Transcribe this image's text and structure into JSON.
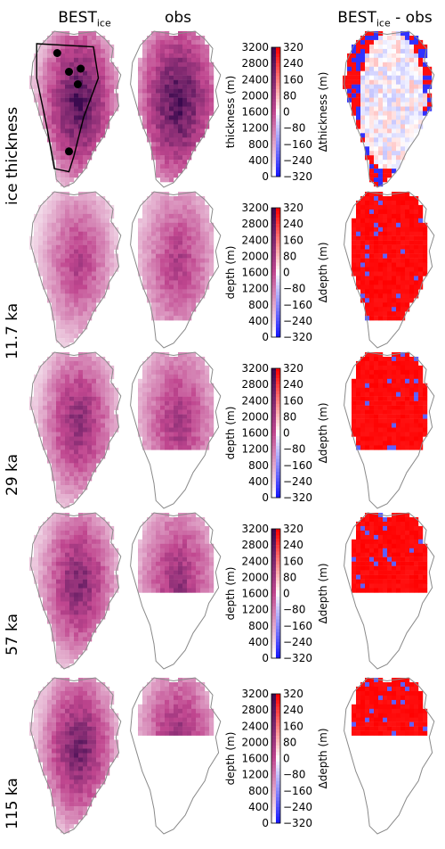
{
  "columns": {
    "model": {
      "base": "BEST",
      "sub": "ice"
    },
    "obs": "obs",
    "diff": {
      "base": "BEST",
      "sub": "ice",
      "suffix": " - obs"
    }
  },
  "rows": [
    {
      "label": "ice thickness",
      "bar_label": "thickness (m)",
      "diff_label": "Δthickness (m)",
      "obs_extent": 1.0,
      "model_level": 1.0
    },
    {
      "label": "11.7 ka",
      "bar_label": "depth (m)",
      "diff_label": "Δdepth (m)",
      "obs_extent": 0.8,
      "model_level": 0.6
    },
    {
      "label": "29 ka",
      "bar_label": "depth (m)",
      "diff_label": "Δdepth (m)",
      "obs_extent": 0.55,
      "model_level": 0.75
    },
    {
      "label": "57 ka",
      "bar_label": "depth (m)",
      "diff_label": "Δdepth (m)",
      "obs_extent": 0.42,
      "model_level": 0.8
    },
    {
      "label": "115 ka",
      "bar_label": "depth (m)",
      "diff_label": "Δdepth (m)",
      "obs_extent": 0.25,
      "model_level": 0.85
    }
  ],
  "depth_ticks": [
    "3200",
    "2800",
    "2400",
    "2000",
    "1600",
    "1200",
    "800",
    "400",
    "0"
  ],
  "diff_ticks": [
    "320",
    "240",
    "160",
    "80",
    "0",
    "−80",
    "−160",
    "−240",
    "−320"
  ],
  "colors": {
    "depth_low": "#ffffff",
    "depth_mid": "#c0468f",
    "depth_high": "#3b0a4f",
    "diff_neg": "#1a1aff",
    "diff_zero": "#ffffff",
    "diff_pos": "#ff0000",
    "outline": "#8a8a8a"
  }
}
